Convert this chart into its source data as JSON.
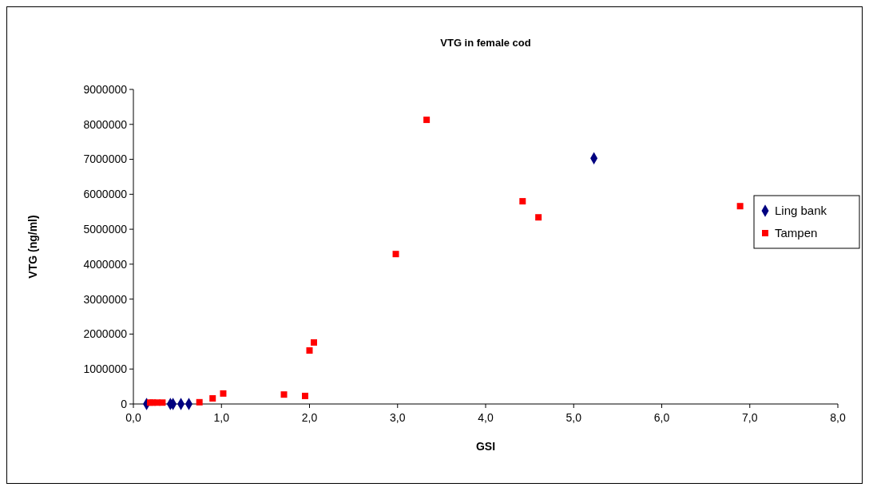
{
  "chart_data": {
    "type": "scatter",
    "title": "VTG in female cod",
    "xlabel": "GSI",
    "ylabel": "VTG (ng/ml)",
    "xlim": [
      0,
      8
    ],
    "xticks": [
      {
        "value": 0,
        "label": "0,0"
      },
      {
        "value": 1,
        "label": "1,0"
      },
      {
        "value": 2,
        "label": "2,0"
      },
      {
        "value": 3,
        "label": "3,0"
      },
      {
        "value": 4,
        "label": "4,0"
      },
      {
        "value": 5,
        "label": "5,0"
      },
      {
        "value": 6,
        "label": "6,0"
      },
      {
        "value": 7,
        "label": "7,0"
      },
      {
        "value": 8,
        "label": "8,0"
      }
    ],
    "ylim": [
      0,
      9000000
    ],
    "yticks": [
      0,
      1000000,
      2000000,
      3000000,
      4000000,
      5000000,
      6000000,
      7000000,
      8000000,
      9000000
    ],
    "legend": "right",
    "grid": false,
    "series": [
      {
        "name": "Ling bank",
        "color": "#000080",
        "marker": "diamond",
        "x": [
          0.15,
          0.42,
          0.45,
          0.54,
          0.63,
          5.23
        ],
        "values": [
          0,
          0,
          0,
          0,
          0,
          7030000
        ]
      },
      {
        "name": "Tampen",
        "color": "#ff0000",
        "marker": "square",
        "x": [
          0.19,
          0.22,
          0.27,
          0.33,
          0.75,
          0.9,
          1.02,
          1.71,
          1.95,
          2.0,
          2.05,
          2.98,
          3.33,
          4.42,
          4.6,
          6.89
        ],
        "values": [
          40000,
          40000,
          40000,
          40000,
          50000,
          160000,
          300000,
          270000,
          230000,
          1530000,
          1760000,
          4290000,
          8130000,
          5800000,
          5340000,
          5660000
        ]
      }
    ]
  }
}
